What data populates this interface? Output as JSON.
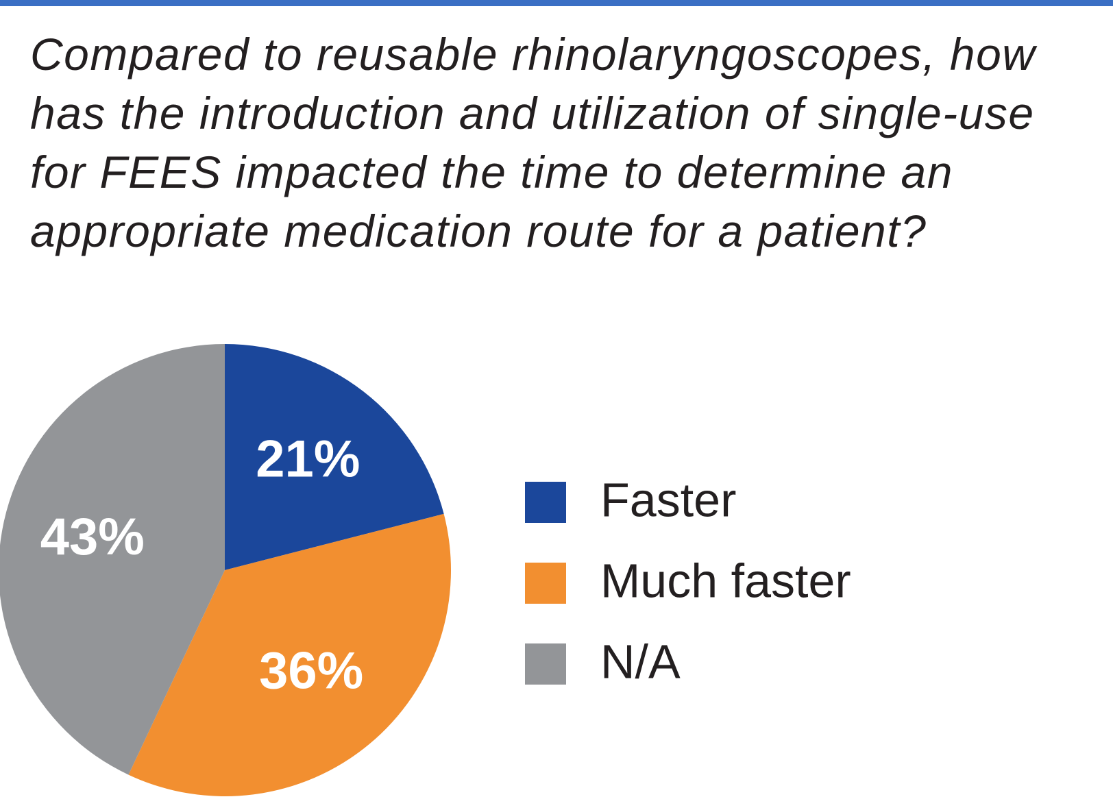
{
  "chart_data": {
    "type": "pie",
    "title": "Compared to reusable rhinolaryngoscopes, how has the introduction and utilization of single-use for FEES impacted the time to determine an appropriate medication route for a patient?",
    "categories": [
      "Faster",
      "Much faster",
      "N/A"
    ],
    "values": [
      21,
      36,
      43
    ],
    "value_labels": [
      "21%",
      "36%",
      "43%"
    ],
    "colors": [
      "#1b479b",
      "#f28f30",
      "#939598"
    ],
    "legend": "right"
  }
}
